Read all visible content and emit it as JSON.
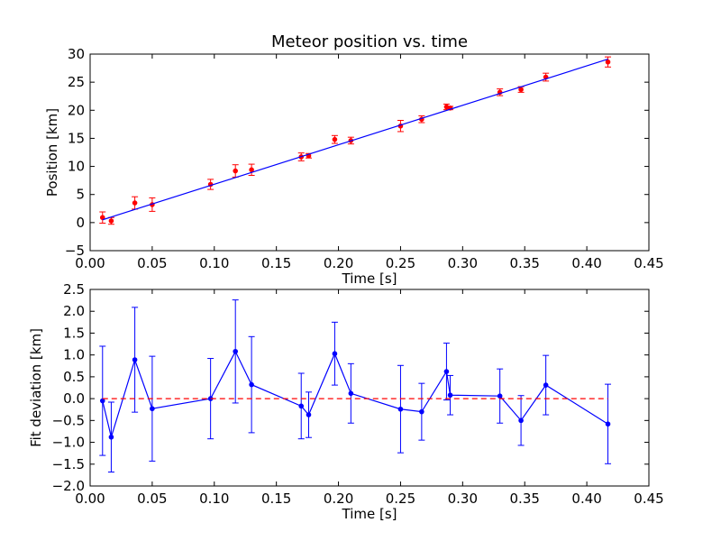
{
  "chart_data": [
    {
      "type": "scatter",
      "title": "Meteor position vs. time",
      "xlabel": "Time [s]",
      "ylabel": "Position [km]",
      "xlim": [
        0.0,
        0.45
      ],
      "ylim": [
        -5,
        30
      ],
      "xticks": [
        "0.00",
        "0.05",
        "0.10",
        "0.15",
        "0.20",
        "0.25",
        "0.30",
        "0.35",
        "0.40",
        "0.45"
      ],
      "yticks": [
        "−5",
        "0",
        "5",
        "10",
        "15",
        "20",
        "25",
        "30"
      ],
      "grid": false,
      "series": [
        {
          "kind": "points-with-errorbars",
          "color": "#ff0000",
          "x": [
            0.01,
            0.017,
            0.036,
            0.05,
            0.097,
            0.117,
            0.13,
            0.17,
            0.176,
            0.197,
            0.21,
            0.25,
            0.267,
            0.287,
            0.29,
            0.33,
            0.347,
            0.367,
            0.417
          ],
          "y": [
            0.9,
            0.3,
            3.5,
            3.2,
            6.8,
            9.2,
            9.4,
            11.7,
            11.9,
            14.8,
            14.6,
            17.2,
            18.4,
            20.6,
            20.4,
            23.2,
            23.7,
            25.9,
            28.6
          ],
          "err": [
            1.0,
            0.6,
            1.1,
            1.2,
            0.9,
            1.1,
            1.0,
            0.7,
            0.4,
            0.7,
            0.6,
            1.0,
            0.6,
            0.5,
            0.3,
            0.6,
            0.5,
            0.7,
            0.9
          ]
        },
        {
          "kind": "fit-line",
          "color": "#0000ff",
          "x": [
            0.01,
            0.417
          ],
          "y": [
            0.5,
            29.1
          ]
        }
      ]
    },
    {
      "type": "line",
      "xlabel": "Time [s]",
      "ylabel": "Fit deviation [km]",
      "xlim": [
        0.0,
        0.45
      ],
      "ylim": [
        -2.0,
        2.5
      ],
      "xticks": [
        "0.00",
        "0.05",
        "0.10",
        "0.15",
        "0.20",
        "0.25",
        "0.30",
        "0.35",
        "0.40",
        "0.45"
      ],
      "yticks": [
        "−2.0",
        "−1.5",
        "−1.0",
        "−0.5",
        "0.0",
        "0.5",
        "1.0",
        "1.5",
        "2.0",
        "2.5"
      ],
      "grid": false,
      "series": [
        {
          "kind": "line-with-errorbars",
          "color": "#0000ff",
          "x": [
            0.01,
            0.017,
            0.036,
            0.05,
            0.097,
            0.117,
            0.13,
            0.17,
            0.176,
            0.197,
            0.21,
            0.25,
            0.267,
            0.287,
            0.29,
            0.33,
            0.347,
            0.367,
            0.417
          ],
          "y": [
            -0.05,
            -0.88,
            0.89,
            -0.23,
            0.0,
            1.08,
            0.32,
            -0.17,
            -0.37,
            1.03,
            0.12,
            -0.24,
            -0.3,
            0.62,
            0.08,
            0.06,
            -0.5,
            0.31,
            -0.58
          ],
          "err": [
            1.25,
            0.8,
            1.2,
            1.2,
            0.92,
            1.18,
            1.1,
            0.75,
            0.52,
            0.72,
            0.68,
            1.0,
            0.65,
            0.65,
            0.45,
            0.62,
            0.57,
            0.68,
            0.91
          ]
        },
        {
          "kind": "zero-line",
          "color": "#ff0000",
          "dashed": true,
          "x": [
            0.01,
            0.417
          ],
          "y": [
            0.0,
            0.0
          ]
        }
      ]
    }
  ]
}
